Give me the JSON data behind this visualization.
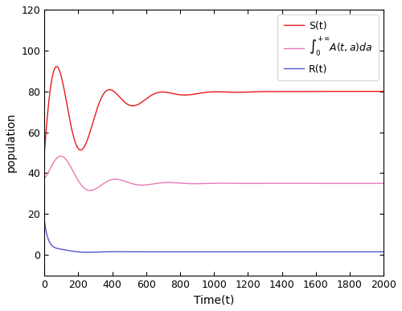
{
  "title": "",
  "xlabel": "Time(t)",
  "ylabel": "population",
  "xlim": [
    0,
    2000
  ],
  "ylim": [
    -10,
    120
  ],
  "yticks": [
    0,
    20,
    40,
    60,
    80,
    100,
    120
  ],
  "xticks": [
    0,
    200,
    400,
    600,
    800,
    1000,
    1200,
    1400,
    1600,
    1800,
    2000
  ],
  "S_color": "#e8191a",
  "A_color": "#e87ab8",
  "R_color": "#5555cc",
  "S_eq": 80.0,
  "A_eq": 35.0,
  "R_eq": 1.5,
  "legend_labels": [
    "S(t)",
    "$\\int_0^{+\\infty}A(t,a)da$",
    "R(t)"
  ],
  "figsize": [
    5.0,
    3.87
  ],
  "dpi": 100,
  "S_params": {
    "amp_decay": -30,
    "osc_amp": 50.0,
    "alpha": 0.004,
    "omega_period": 310,
    "phi": 0.0
  },
  "A_params": {
    "amp_decay": 15,
    "osc_amp": 16.0,
    "alpha": 0.008,
    "omega_period": 310,
    "phi": -0.9
  },
  "R_params": {
    "amp_decay": 17,
    "osc_amp": 2.5,
    "alpha": 0.04,
    "osc_alpha": 0.009,
    "omega_period": 310,
    "phi": -0.8
  }
}
